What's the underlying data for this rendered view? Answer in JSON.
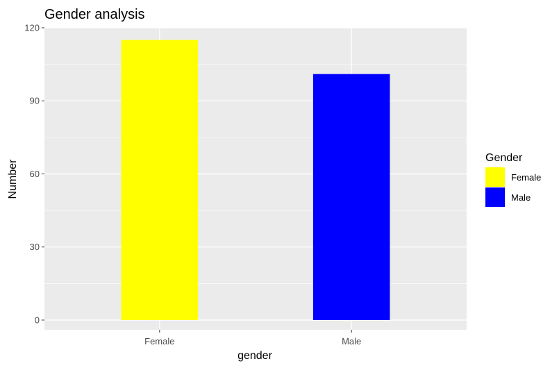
{
  "chart_data": {
    "type": "bar",
    "title": "Gender analysis",
    "xlabel": "gender",
    "ylabel": "Number",
    "categories": [
      "Female",
      "Male"
    ],
    "values": [
      115,
      101
    ],
    "colors": [
      "#ffff00",
      "#0000ff"
    ],
    "ylim": [
      -4,
      120
    ],
    "yticks": [
      0,
      30,
      60,
      90,
      120
    ],
    "ytick_labels": [
      "0",
      "30",
      "60",
      "90",
      "120"
    ],
    "grid": true,
    "panel_background": "#ebebeb",
    "legend": {
      "title": "Gender",
      "position": "right",
      "entries": [
        {
          "label": "Female",
          "color": "#ffff00"
        },
        {
          "label": "Male",
          "color": "#0000ff"
        }
      ]
    }
  }
}
